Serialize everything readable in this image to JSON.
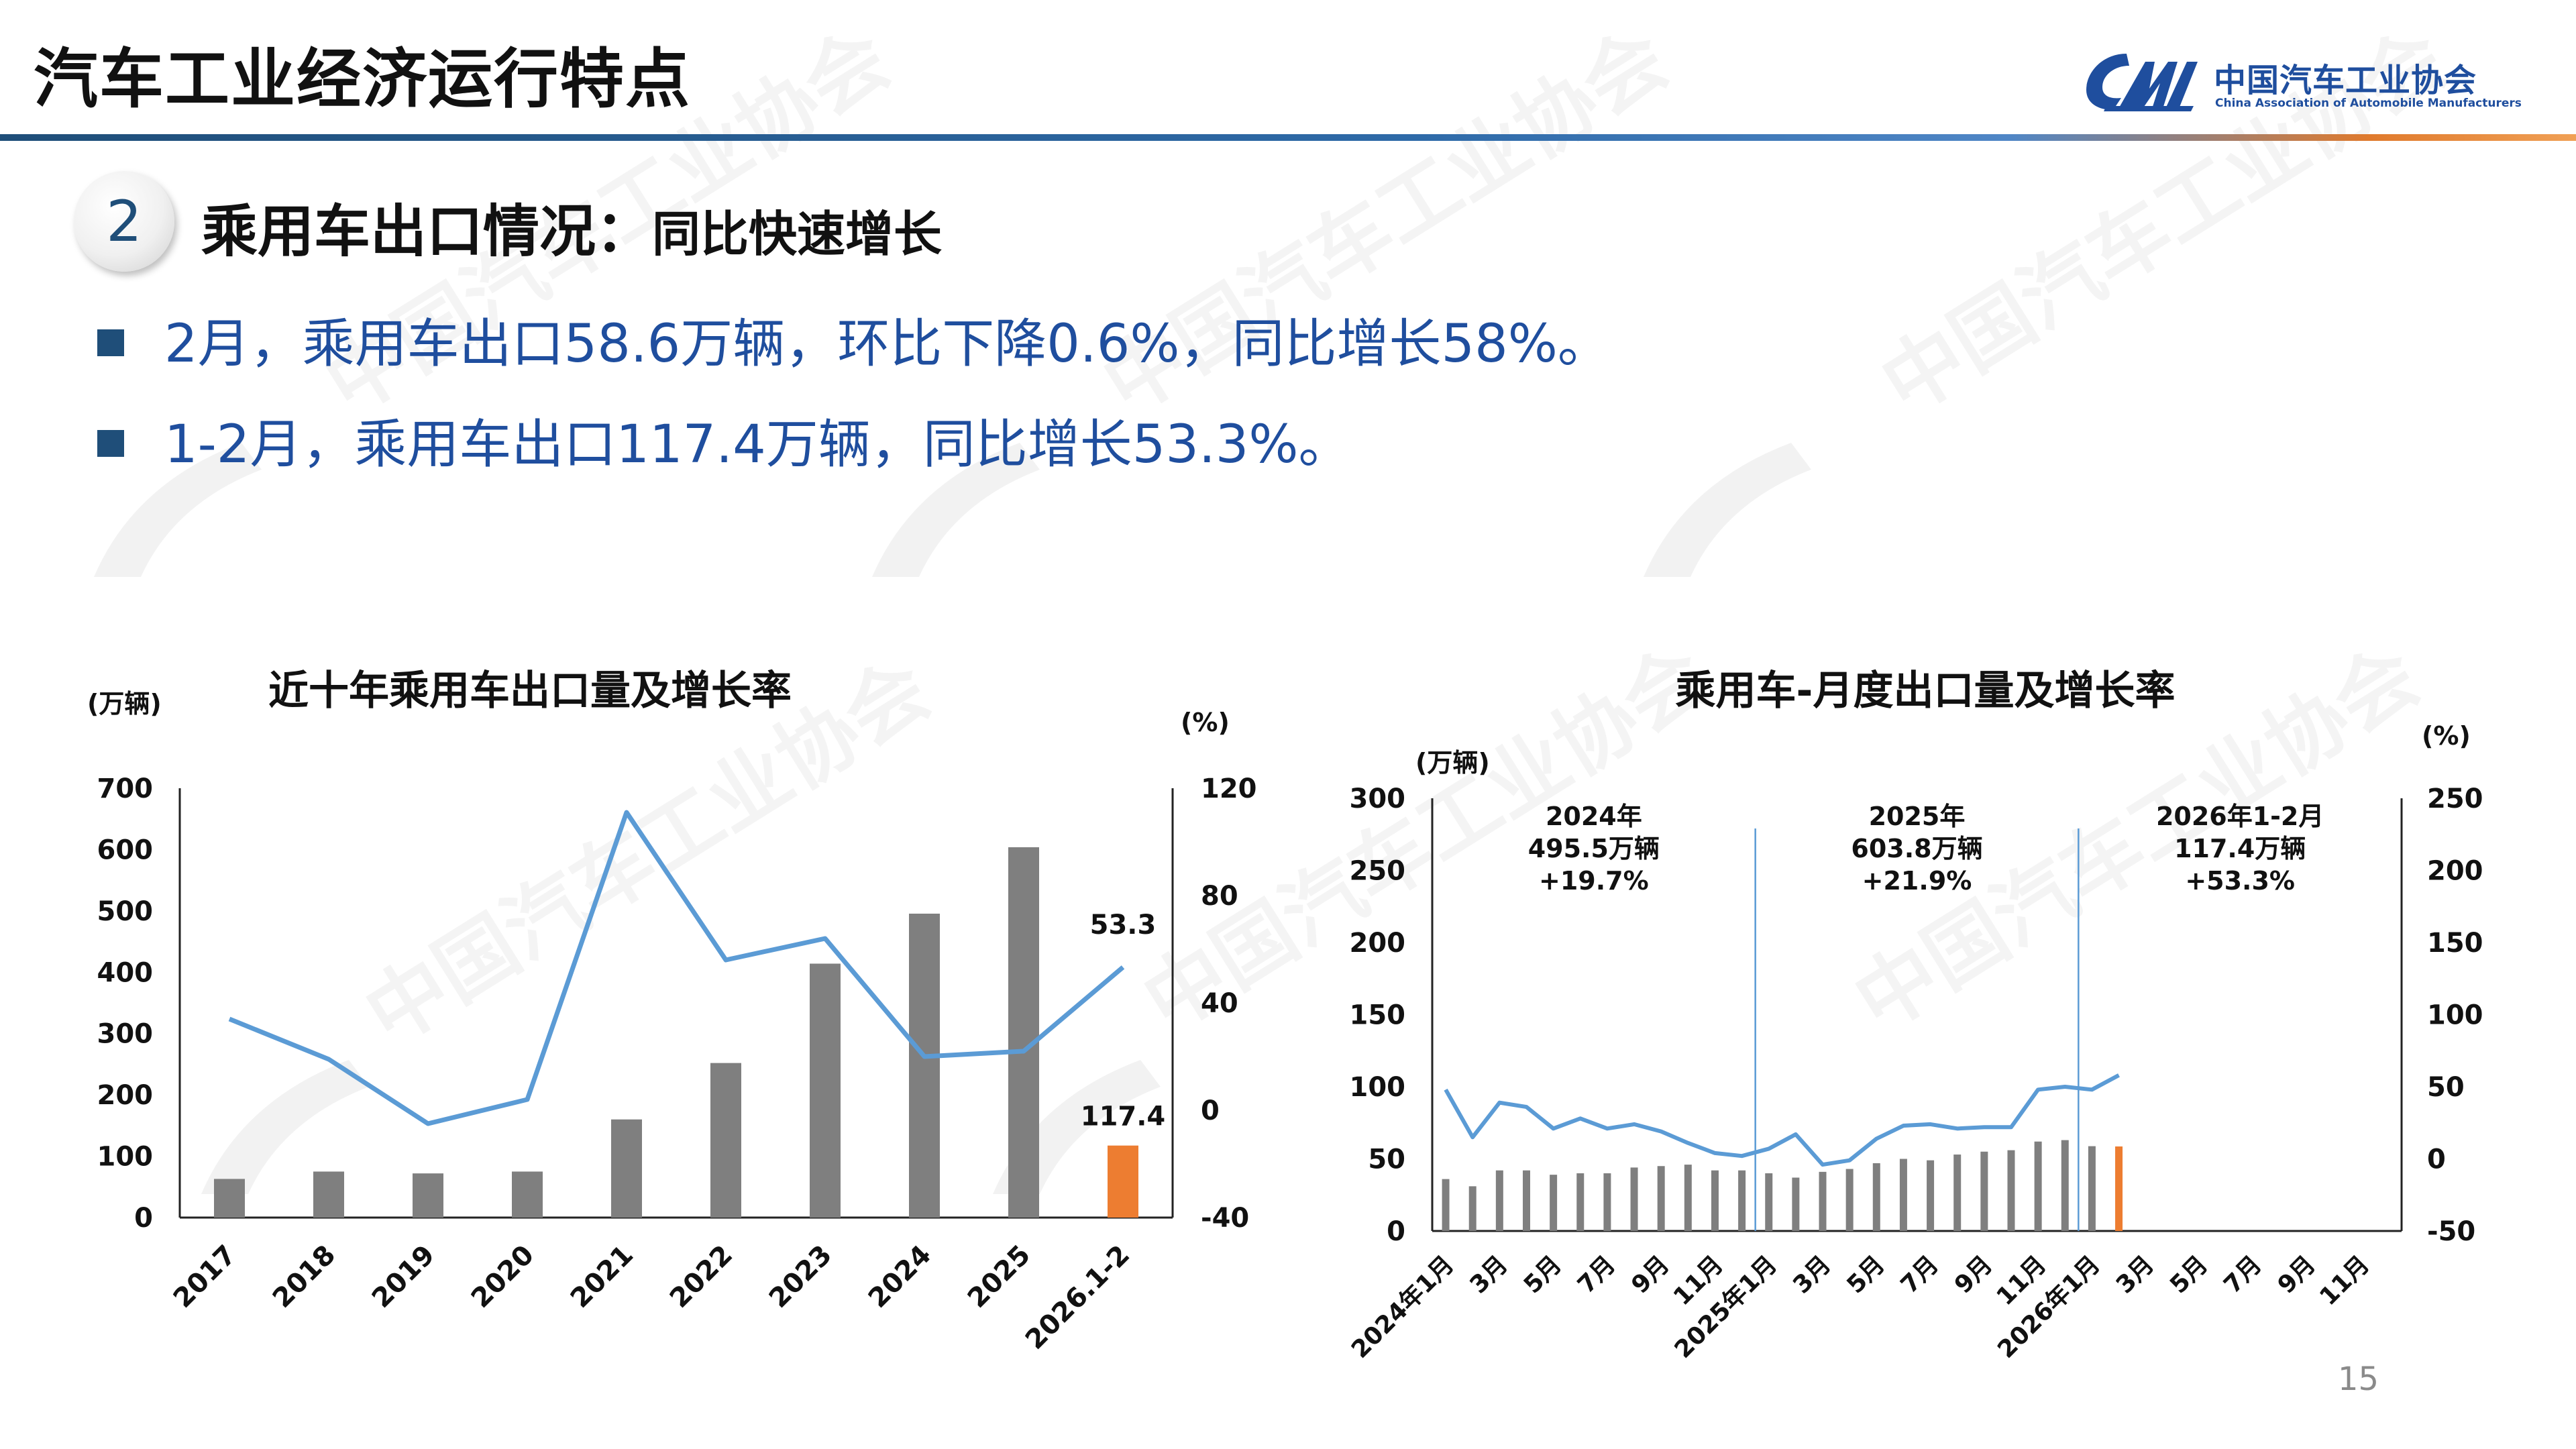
{
  "header": {
    "title": "汽车工业经济运行特点"
  },
  "logo": {
    "cn": "中国汽车工业协会",
    "en": "China Association of Automobile Manufacturers",
    "brand_color": "#1f4e9e"
  },
  "section": {
    "number": "2",
    "title": "乘用车出口情况：",
    "subtitle": "同比快速增长"
  },
  "bullets": [
    "2月，乘用车出口58.6万辆，环比下降0.6%，同比增长58%。",
    "1-2月，乘用车出口117.4万辆，同比增长53.3%。"
  ],
  "page_number": "15",
  "colors": {
    "bar": "#7f7f7f",
    "highlight": "#ed7d31",
    "line": "#5b9bd5",
    "accent_line": "#1f4e79"
  },
  "chart_data": [
    {
      "type": "bar",
      "title": "近十年乘用车出口量及增长率",
      "ylabel": "(万辆)",
      "y2label": "(%)",
      "ylim": [
        0,
        700
      ],
      "y2lim": [
        -40,
        120
      ],
      "yticks": [
        "0",
        "100",
        "200",
        "300",
        "400",
        "500",
        "600",
        "700"
      ],
      "y2ticks": [
        "-40",
        "0",
        "40",
        "80",
        "120"
      ],
      "categories": [
        "2017",
        "2018",
        "2019",
        "2020",
        "2021",
        "2022",
        "2023",
        "2024",
        "2025",
        "2026.1-2"
      ],
      "series": [
        {
          "kind": "bar",
          "values": [
            63,
            75,
            72,
            75,
            160,
            252,
            414,
            495.5,
            603.8,
            117.4
          ],
          "highlight_last": true
        },
        {
          "kind": "line",
          "axis": "y2",
          "values": [
            34,
            19,
            -5,
            4,
            111,
            56,
            64,
            20,
            22,
            53.3
          ]
        }
      ],
      "data_labels": [
        {
          "index": 9,
          "series": 0,
          "text": "117.4"
        },
        {
          "index": 9,
          "series": 1,
          "text": "53.3"
        }
      ]
    },
    {
      "type": "bar",
      "title": "乘用车-月度出口量及增长率",
      "ylabel": "(万辆)",
      "y2label": "(%)",
      "ylim": [
        0,
        300
      ],
      "y2lim": [
        -50,
        250
      ],
      "yticks": [
        "0",
        "50",
        "100",
        "150",
        "200",
        "250",
        "300"
      ],
      "y2ticks": [
        "-50",
        "0",
        "50",
        "100",
        "150",
        "200",
        "250"
      ],
      "x_tick_labels": [
        "2024年1月",
        "3月",
        "5月",
        "7月",
        "9月",
        "11月",
        "2025年1月",
        "3月",
        "5月",
        "7月",
        "9月",
        "11月",
        "2026年1月",
        "3月",
        "5月",
        "7月",
        "9月",
        "11月"
      ],
      "series": [
        {
          "kind": "bar",
          "values": [
            36,
            31,
            42,
            42,
            39,
            40,
            40,
            44,
            45,
            46,
            42,
            42,
            40,
            37,
            41,
            43,
            47,
            50,
            49,
            53,
            55,
            56,
            62,
            63,
            58.8,
            58.6
          ],
          "highlight_last": true
        },
        {
          "kind": "line",
          "axis": "y2",
          "values": [
            48,
            15,
            39,
            36,
            21,
            28,
            21,
            24,
            19,
            11,
            4,
            2,
            7,
            17,
            -4,
            -1,
            14,
            23,
            24,
            21,
            22,
            22,
            48,
            50,
            48,
            58
          ]
        }
      ],
      "annotations": [
        {
          "year": "2024年",
          "volume": "495.5万辆",
          "growth": "+19.7%"
        },
        {
          "year": "2025年",
          "volume": "603.8万辆",
          "growth": "+21.9%"
        },
        {
          "year": "2026年1-2月",
          "volume": "117.4万辆",
          "growth": "+53.3%"
        }
      ]
    }
  ]
}
